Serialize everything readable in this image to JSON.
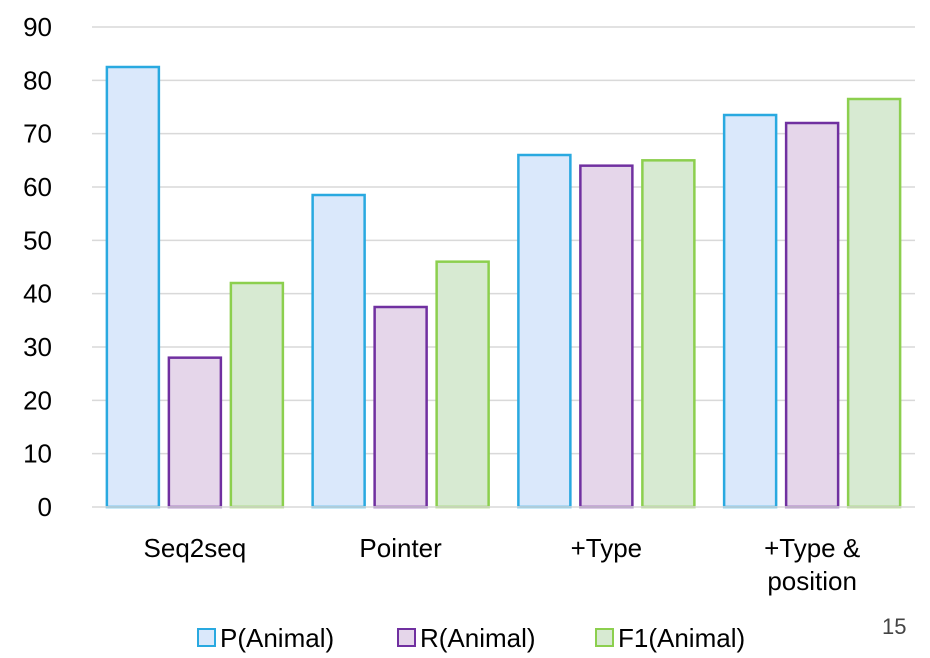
{
  "chart_data": {
    "type": "bar",
    "categories": [
      [
        "Seq2seq"
      ],
      [
        "Pointer"
      ],
      [
        "+Type"
      ],
      [
        "+Type &",
        "position"
      ]
    ],
    "series": [
      {
        "name": "P(Animal)",
        "values": [
          82.5,
          58.5,
          66,
          73.5
        ],
        "fill": "#dae8fb",
        "stroke": "#29a9e0"
      },
      {
        "name": "R(Animal)",
        "values": [
          28,
          37.5,
          64,
          72
        ],
        "fill": "#e5d6ea",
        "stroke": "#7030a0"
      },
      {
        "name": "F1(Animal)",
        "values": [
          42,
          46,
          65,
          76.5
        ],
        "fill": "#d7ead2",
        "stroke": "#8ccf4e"
      }
    ],
    "ylim": [
      0,
      90
    ],
    "yticks": [
      0,
      10,
      20,
      30,
      40,
      50,
      60,
      70,
      80,
      90
    ],
    "grid": true,
    "legend_position": "bottom"
  },
  "page_number": "15"
}
